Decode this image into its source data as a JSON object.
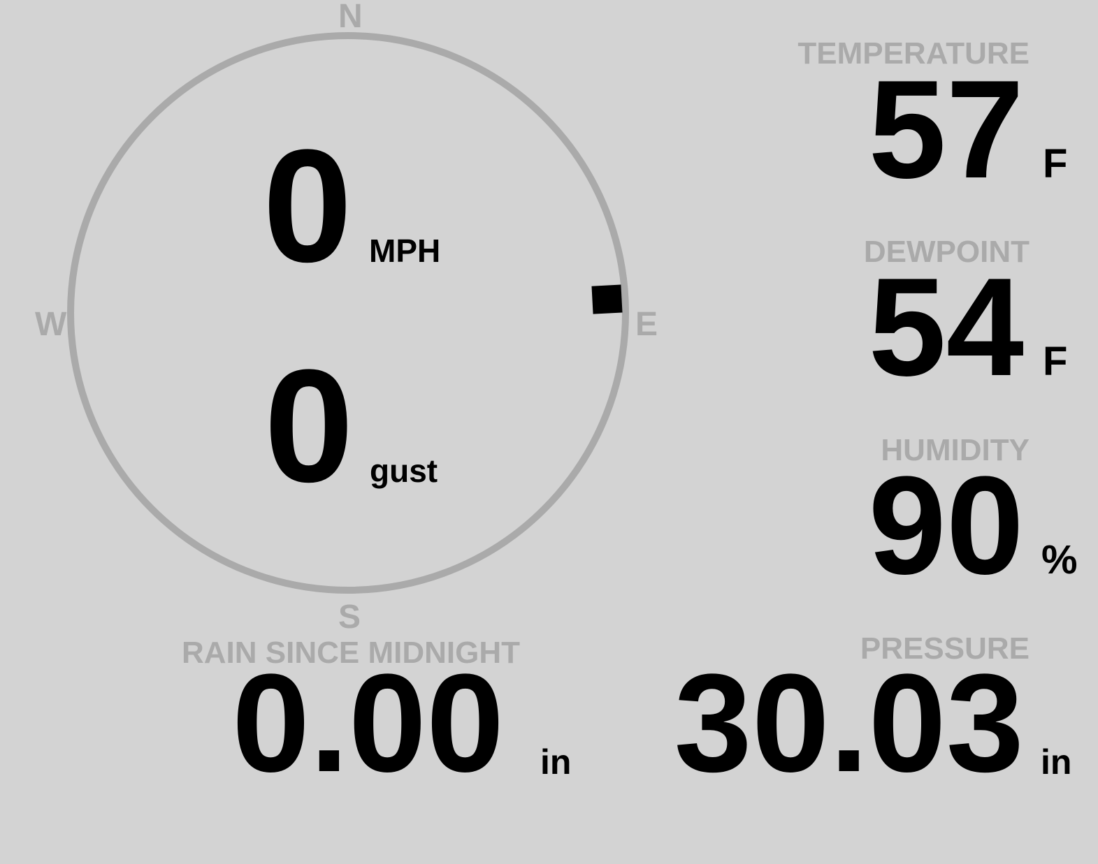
{
  "colors": {
    "background": "#d3d3d3",
    "label": "#aaaaaa",
    "value": "#000000",
    "compass_ring": "#aaaaaa",
    "wind_marker": "#000000"
  },
  "compass": {
    "north": "N",
    "south": "S",
    "east": "E",
    "west": "W",
    "wind_direction_deg": 87
  },
  "wind": {
    "speed": "0",
    "speed_unit": "MPH",
    "gust": "0",
    "gust_unit": "gust"
  },
  "temperature": {
    "label": "TEMPERATURE",
    "value": "57",
    "unit": "F"
  },
  "dewpoint": {
    "label": "DEWPOINT",
    "value": "54",
    "unit": "F"
  },
  "humidity": {
    "label": "HUMIDITY",
    "value": "90",
    "unit": "%"
  },
  "rain": {
    "label": "RAIN SINCE MIDNIGHT",
    "value": "0.00",
    "unit": "in"
  },
  "pressure": {
    "label": "PRESSURE",
    "value": "30.03",
    "unit": "in"
  }
}
